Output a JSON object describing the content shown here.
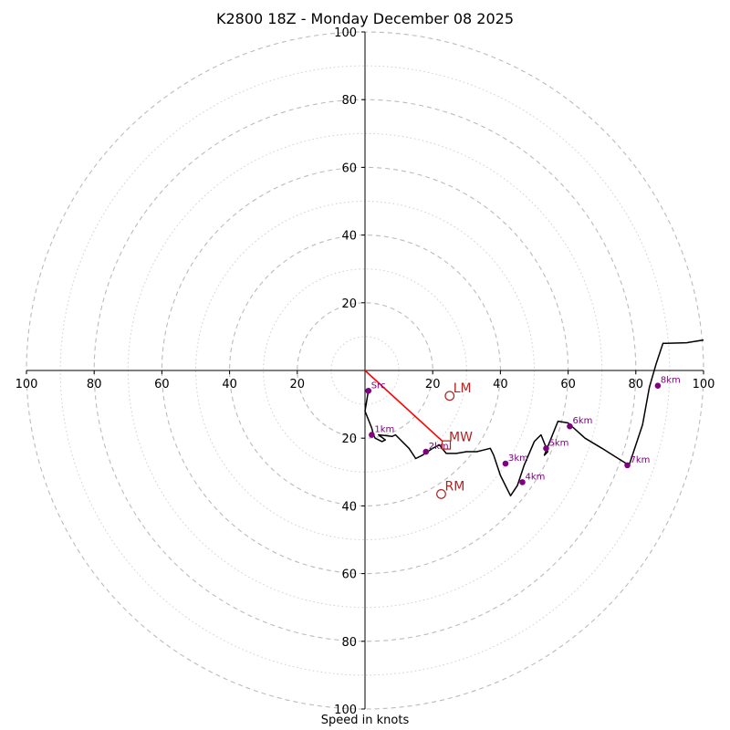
{
  "chart_data": {
    "type": "hodograph",
    "title": "K2800 18Z - Monday December 08 2025",
    "xlabel": "Speed in knots",
    "axis_range": [
      -100,
      100
    ],
    "rings_dashed": [
      20,
      40,
      60,
      80,
      100
    ],
    "rings_dotted": [
      10,
      30,
      50,
      70,
      90
    ],
    "x_ticks": [
      {
        "value": -100,
        "label": "100"
      },
      {
        "value": -80,
        "label": "80"
      },
      {
        "value": -60,
        "label": "60"
      },
      {
        "value": -40,
        "label": "40"
      },
      {
        "value": -20,
        "label": "20"
      },
      {
        "value": 20,
        "label": "20"
      },
      {
        "value": 40,
        "label": "40"
      },
      {
        "value": 60,
        "label": "60"
      },
      {
        "value": 80,
        "label": "80"
      },
      {
        "value": 100,
        "label": "100"
      }
    ],
    "y_ticks": [
      {
        "value": 100,
        "label": "100"
      },
      {
        "value": 80,
        "label": "80"
      },
      {
        "value": 60,
        "label": "60"
      },
      {
        "value": 40,
        "label": "40"
      },
      {
        "value": 20,
        "label": "20"
      },
      {
        "value": -20,
        "label": "20"
      },
      {
        "value": -40,
        "label": "40"
      },
      {
        "value": -60,
        "label": "60"
      },
      {
        "value": -80,
        "label": "80"
      },
      {
        "value": -100,
        "label": "100"
      }
    ],
    "wind_profile": {
      "u": [
        1,
        0,
        2,
        2.5,
        3,
        5,
        6,
        4,
        8,
        9,
        13,
        15,
        17,
        20,
        22,
        24,
        27,
        30,
        33,
        35,
        37,
        38,
        40,
        43,
        45,
        47,
        50,
        52,
        54,
        53,
        55,
        57,
        60,
        65,
        70,
        74,
        78,
        82,
        84,
        86,
        88,
        89,
        95,
        100
      ],
      "v": [
        -6,
        -12,
        -17,
        -19,
        -20,
        -21,
        -20.5,
        -19,
        -19.5,
        -19,
        -23,
        -26,
        -25,
        -23,
        -22,
        -24.5,
        -24.5,
        -24,
        -24,
        -23.5,
        -23,
        -25,
        -31,
        -37,
        -34,
        -28,
        -21,
        -19,
        -24,
        -25,
        -20,
        -15,
        -15.5,
        -20,
        -23,
        -25.5,
        -28,
        -16,
        -5,
        2,
        8,
        8,
        8.2,
        9
      ]
    },
    "height_markers": [
      {
        "label": "Src",
        "u": 1,
        "v": -6
      },
      {
        "label": "1km",
        "u": 2,
        "v": -19
      },
      {
        "label": "2km",
        "u": 18,
        "v": -24
      },
      {
        "label": "3km",
        "u": 41.5,
        "v": -27.5
      },
      {
        "label": "4km",
        "u": 46.5,
        "v": -33
      },
      {
        "label": "5km",
        "u": 53.5,
        "v": -23
      },
      {
        "label": "6km",
        "u": 60.5,
        "v": -16.5
      },
      {
        "label": "7km",
        "u": 77.5,
        "v": -28
      },
      {
        "label": "8km",
        "u": 86.5,
        "v": -4.5
      }
    ],
    "shear_vector": {
      "from": [
        0,
        0
      ],
      "to": [
        23,
        -21
      ]
    },
    "storm_motions": [
      {
        "label": "LM",
        "u": 25,
        "v": -7.5
      },
      {
        "label": "MW",
        "u": 24,
        "v": -22
      },
      {
        "label": "RM",
        "u": 22.5,
        "v": -36.5
      }
    ],
    "colors": {
      "profile": "#000000",
      "markers": "#800080",
      "motion": "#b22222",
      "shear": "#ff0000",
      "rings": "#bbbbbb"
    }
  }
}
